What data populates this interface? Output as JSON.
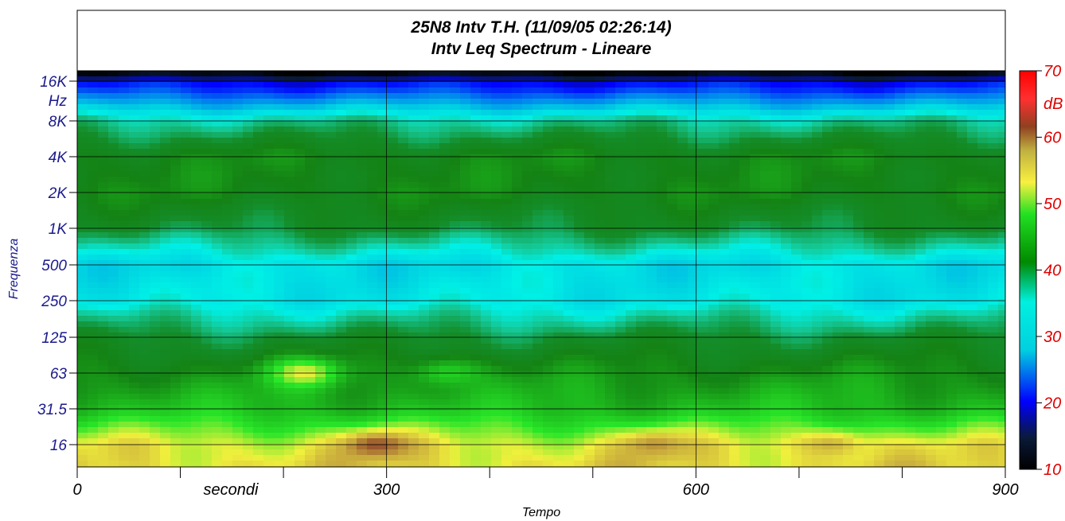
{
  "chart_data": {
    "type": "heatmap",
    "title": "25N8 Intv T.H. (11/09/05 02:26:14)",
    "subtitle": "Intv Leq Spectrum - Lineare",
    "xlabel": "Tempo",
    "ylabel": "Frequenza",
    "x_unit_label": "secondi",
    "y_unit_label": "Hz",
    "xlim": [
      0,
      900
    ],
    "x_ticks": [
      "0",
      "300",
      "600",
      "900"
    ],
    "y_ticks": [
      "16K",
      "8K",
      "4K",
      "2K",
      "1K",
      "500",
      "250",
      "125",
      "63",
      "31.5",
      "16"
    ],
    "colorbar": {
      "label": "dB",
      "range": [
        10,
        70
      ],
      "ticks": [
        "70",
        "60",
        "50",
        "40",
        "30",
        "20",
        "10"
      ]
    },
    "frequency_bands_hz": [
      "16K",
      "8K",
      "4K",
      "2K",
      "1K",
      "500",
      "250",
      "125",
      "63",
      "31.5",
      "16"
    ],
    "band_levels_db": [
      22,
      35,
      41,
      41,
      38,
      31,
      32,
      38,
      42,
      45,
      52
    ],
    "hotspots": [
      {
        "time_s": 220,
        "frequency": "63",
        "level_db": 53
      },
      {
        "time_s": 360,
        "frequency": "63",
        "level_db": 47
      },
      {
        "time_s": 290,
        "frequency": "16",
        "level_db": 58
      },
      {
        "time_s": 560,
        "frequency": "16",
        "level_db": 56
      },
      {
        "time_s": 730,
        "frequency": "16",
        "level_db": 55
      }
    ],
    "grid": true
  }
}
